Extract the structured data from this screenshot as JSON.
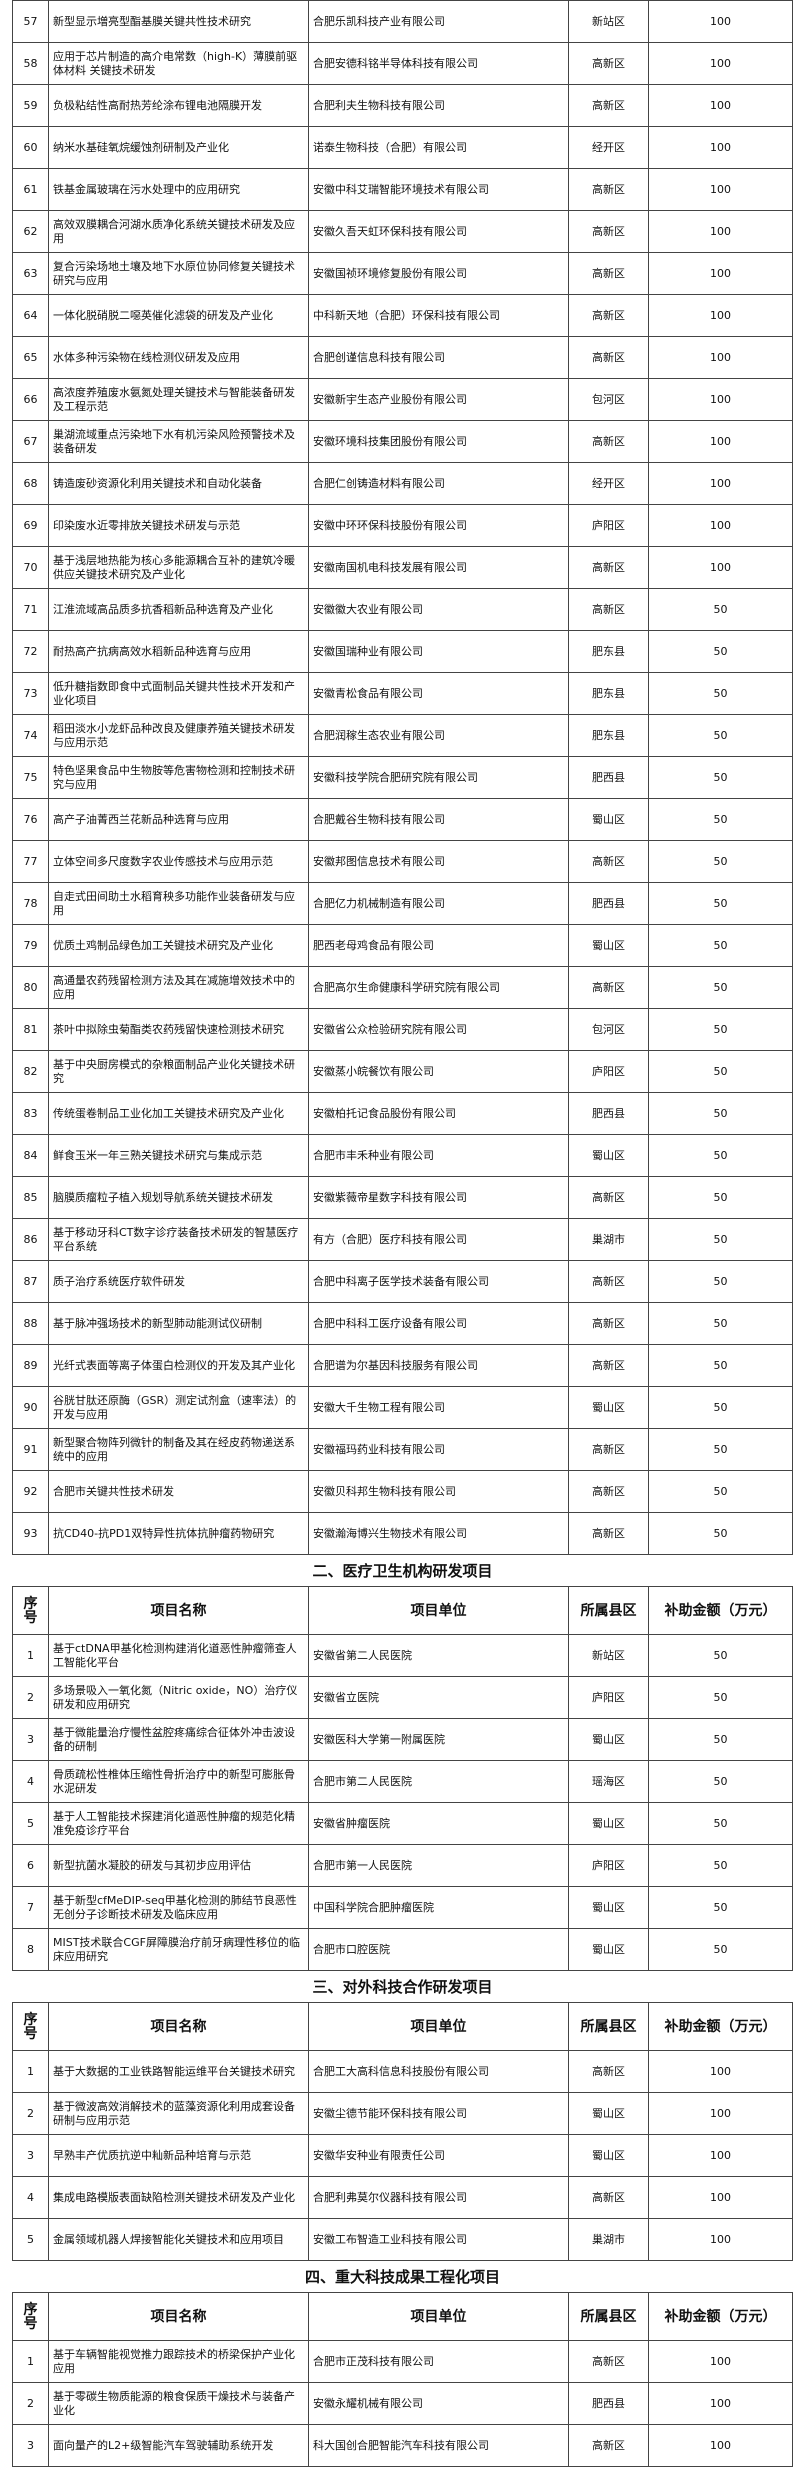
{
  "sections": [
    {
      "rows": [
        [
          "57",
          "新型显示増亮型酯基膜关键共性技术研究",
          "合肥乐凯科技产业有限公司",
          "新站区",
          "100"
        ],
        [
          "58",
          "应用于芯片制造的高介电常数（high-K）薄膜前驱体材料 关键技术研发",
          "合肥安德科铭半导体科技有限公司",
          "高新区",
          "100"
        ],
        [
          "59",
          "负极粘结性高耐热芳纶涂布锂电池隔膜开发",
          "合肥利夫生物科技有限公司",
          "高新区",
          "100"
        ],
        [
          "60",
          "纳米水基硅氧烷缓蚀剂研制及产业化",
          "诺泰生物科技（合肥）有限公司",
          "经开区",
          "100"
        ],
        [
          "61",
          "铁基金属玻璃在污水处理中的应用研究",
          "安徽中科艾瑞智能环境技术有限公司",
          "高新区",
          "100"
        ],
        [
          "62",
          "高效双膜耦合河湖水质净化系统关键技术研发及应用",
          "安徽久吾天虹环保科技有限公司",
          "高新区",
          "100"
        ],
        [
          "63",
          "复合污染场地土壤及地下水原位协同修复关键技术研究与应用",
          "安徽国祯环境修复股份有限公司",
          "高新区",
          "100"
        ],
        [
          "64",
          "一体化脱硝脱二噁英催化滤袋的研发及产业化",
          "中科新天地（合肥）环保科技有限公司",
          "高新区",
          "100"
        ],
        [
          "65",
          "水体多种污染物在线检测仪研发及应用",
          "合肥创谨信息科技有限公司",
          "高新区",
          "100"
        ],
        [
          "66",
          "高浓度养殖废水氨氮处理关键技术与智能装备研发及工程示范",
          "安徽新宇生态产业股份有限公司",
          "包河区",
          "100"
        ],
        [
          "67",
          "巢湖流域重点污染地下水有机污染风险预警技术及装备研发",
          "安徽环境科技集团股份有限公司",
          "高新区",
          "100"
        ],
        [
          "68",
          "铸造废砂资源化利用关键技术和自动化装备",
          "合肥仁创铸造材料有限公司",
          "经开区",
          "100"
        ],
        [
          "69",
          "印染废水近零排放关键技术研发与示范",
          "安徽中环环保科技股份有限公司",
          "庐阳区",
          "100"
        ],
        [
          "70",
          "基于浅层地热能为核心多能源耦合互补的建筑冷暖供应关键技术研究及产业化",
          "安徽南国机电科技发展有限公司",
          "高新区",
          "100"
        ],
        [
          "71",
          "江淮流域高品质多抗香稻新品种选育及产业化",
          "安徽徽大农业有限公司",
          "高新区",
          "50"
        ],
        [
          "72",
          "耐热高产抗病高效水稻新品种选育与应用",
          "安徽国瑞种业有限公司",
          "肥东县",
          "50"
        ],
        [
          "73",
          "低升糖指数即食中式面制品关键共性技术开发和产业化项目",
          "安徽青松食品有限公司",
          "肥东县",
          "50"
        ],
        [
          "74",
          "稻田淡水小龙虾品种改良及健康养殖关键技术研发与应用示范",
          "合肥润稼生态农业有限公司",
          "肥东县",
          "50"
        ],
        [
          "75",
          "特色坚果食品中生物胺等危害物检测和控制技术研究与应用",
          "安徽科技学院合肥研究院有限公司",
          "肥西县",
          "50"
        ],
        [
          "76",
          "高产子油菁西兰花新品种选育与应用",
          "合肥戴谷生物科技有限公司",
          "蜀山区",
          "50"
        ],
        [
          "77",
          "立体空间多尺度数字农业传感技术与应用示范",
          "安徽邦图信息技术有限公司",
          "高新区",
          "50"
        ],
        [
          "78",
          "自走式田间助土水稻育秧多功能作业装备研发与应用",
          "合肥亿力机械制造有限公司",
          "肥西县",
          "50"
        ],
        [
          "79",
          "优质土鸡制品绿色加工关键技术研究及产业化",
          "肥西老母鸡食品有限公司",
          "蜀山区",
          "50"
        ],
        [
          "80",
          "高通量农药残留检测方法及其在减施增效技术中的应用",
          "合肥高尔生命健康科学研究院有限公司",
          "高新区",
          "50"
        ],
        [
          "81",
          "茶叶中拟除虫菊酯类农药残留快速检测技术研究",
          "安徽省公众检验研究院有限公司",
          "包河区",
          "50"
        ],
        [
          "82",
          "基于中央厨房模式的杂粮面制品产业化关键技术研究",
          "安徽蒸小皖餐饮有限公司",
          "庐阳区",
          "50"
        ],
        [
          "83",
          "传统蛋卷制品工业化加工关键技术研究及产业化",
          "安徽柏托记食品股份有限公司",
          "肥西县",
          "50"
        ],
        [
          "84",
          "鲜食玉米一年三熟关键技术研究与集成示范",
          "合肥市丰禾种业有限公司",
          "蜀山区",
          "50"
        ],
        [
          "85",
          "脑膜质瘤粒子植入规划导航系统关键技术研发",
          "安徽紫薇帝星数字科技有限公司",
          "高新区",
          "50"
        ],
        [
          "86",
          "基于移动牙科CT数字诊疗装备技术研发的智慧医疗平台系统",
          "有方（合肥）医疗科技有限公司",
          "巢湖市",
          "50"
        ],
        [
          "87",
          "质子治疗系统医疗软件研发",
          "合肥中科离子医学技术装备有限公司",
          "高新区",
          "50"
        ],
        [
          "88",
          "基于脉冲强场技术的新型肺动能测试仪研制",
          "合肥中科科工医疗设备有限公司",
          "高新区",
          "50"
        ],
        [
          "89",
          "光纤式表面等离子体蛋白检测仪的开发及其产业化",
          "合肥谱为尔基因科技服务有限公司",
          "高新区",
          "50"
        ],
        [
          "90",
          "谷胱甘肽还原酶（GSR）测定试剂盒（速率法）的开发与应用",
          "安徽大千生物工程有限公司",
          "蜀山区",
          "50"
        ],
        [
          "91",
          "新型聚合物阵列微针的制备及其在经皮药物递送系统中的应用",
          "安徽福玛药业科技有限公司",
          "高新区",
          "50"
        ],
        [
          "92",
          "合肥市关键共性技术研发",
          "安徽贝科邦生物科技有限公司",
          "高新区",
          "50"
        ],
        [
          "93",
          "抗CD40-抗PD1双特异性抗体抗肿瘤药物研究",
          "安徽瀚海博兴生物技术有限公司",
          "高新区",
          "50"
        ]
      ]
    },
    {
      "title": "二、医疗卫生机构研发项目",
      "header": [
        "序号",
        "项目名称",
        "项目单位",
        "所属县区",
        "补助金额（万元）"
      ],
      "rows": [
        [
          "1",
          "基于ctDNA甲基化检测构建消化道恶性肿瘤筛查人工智能化平台",
          "安徽省第二人民医院",
          "新站区",
          "50"
        ],
        [
          "2",
          "多场景吸入一氧化氮（Nitric oxide，NO）治疗仪研发和应用研究",
          "安徽省立医院",
          "庐阳区",
          "50"
        ],
        [
          "3",
          "基于微能量治疗慢性盆腔疼痛综合征体外冲击波设备的研制",
          "安徽医科大学第一附属医院",
          "蜀山区",
          "50"
        ],
        [
          "4",
          "骨质疏松性椎体压缩性骨折治疗中的新型可膨胀骨水泥研发",
          "合肥市第二人民医院",
          "瑶海区",
          "50"
        ],
        [
          "5",
          "基于人工智能技术探建消化道恶性肿瘤的规范化精准免疫诊疗平台",
          "安徽省肿瘤医院",
          "蜀山区",
          "50"
        ],
        [
          "6",
          "新型抗菌水凝胶的研发与其初步应用评估",
          "合肥市第一人民医院",
          "庐阳区",
          "50"
        ],
        [
          "7",
          "基于新型cfMeDIP-seq甲基化检测的肺结节良恶性无创分子诊断技术研发及临床应用",
          "中国科学院合肥肿瘤医院",
          "蜀山区",
          "50"
        ],
        [
          "8",
          "MIST技术联合CGF屏障膜治疗前牙病理性移位的临床应用研究",
          "合肥市口腔医院",
          "蜀山区",
          "50"
        ]
      ]
    },
    {
      "title": "三、对外科技合作研发项目",
      "header": [
        "序号",
        "项目名称",
        "项目单位",
        "所属县区",
        "补助金额（万元）"
      ],
      "rows": [
        [
          "1",
          "基于大数据的工业铁路智能运维平台关键技术研究",
          "合肥工大高科信息科技股份有限公司",
          "高新区",
          "100"
        ],
        [
          "2",
          "基于微波高效消解技术的蓝藻资源化利用成套设备研制与应用示范",
          "安徽尘德节能环保科技有限公司",
          "蜀山区",
          "100"
        ],
        [
          "3",
          "早熟丰产优质抗逆中籼新品种培育与示范",
          "安徽华安种业有限责任公司",
          "蜀山区",
          "100"
        ],
        [
          "4",
          "集成电路模版表面缺陷检测关键技术研发及产业化",
          "合肥利弗莫尔仪器科技有限公司",
          "高新区",
          "100"
        ],
        [
          "5",
          "金属领域机器人焊接智能化关键技术和应用项目",
          "安徽工布智造工业科技有限公司",
          "巢湖市",
          "100"
        ]
      ]
    },
    {
      "title": "四、重大科技成果工程化项目",
      "header": [
        "序号",
        "项目名称",
        "项目单位",
        "所属县区",
        "补助金额（万元）"
      ],
      "rows": [
        [
          "1",
          "基于车辆智能视觉推力跟踪技术的桥梁保护产业化应用",
          "合肥市正茂科技有限公司",
          "高新区",
          "100"
        ],
        [
          "2",
          "基于零碳生物质能源的粮食保质干燥技术与装备产业化",
          "安徽永耀机械有限公司",
          "肥西县",
          "100"
        ],
        [
          "3",
          "面向量产的L2+级智能汽车驾驶辅助系统开发",
          "科大国创合肥智能汽车科技有限公司",
          "高新区",
          "100"
        ]
      ]
    }
  ]
}
